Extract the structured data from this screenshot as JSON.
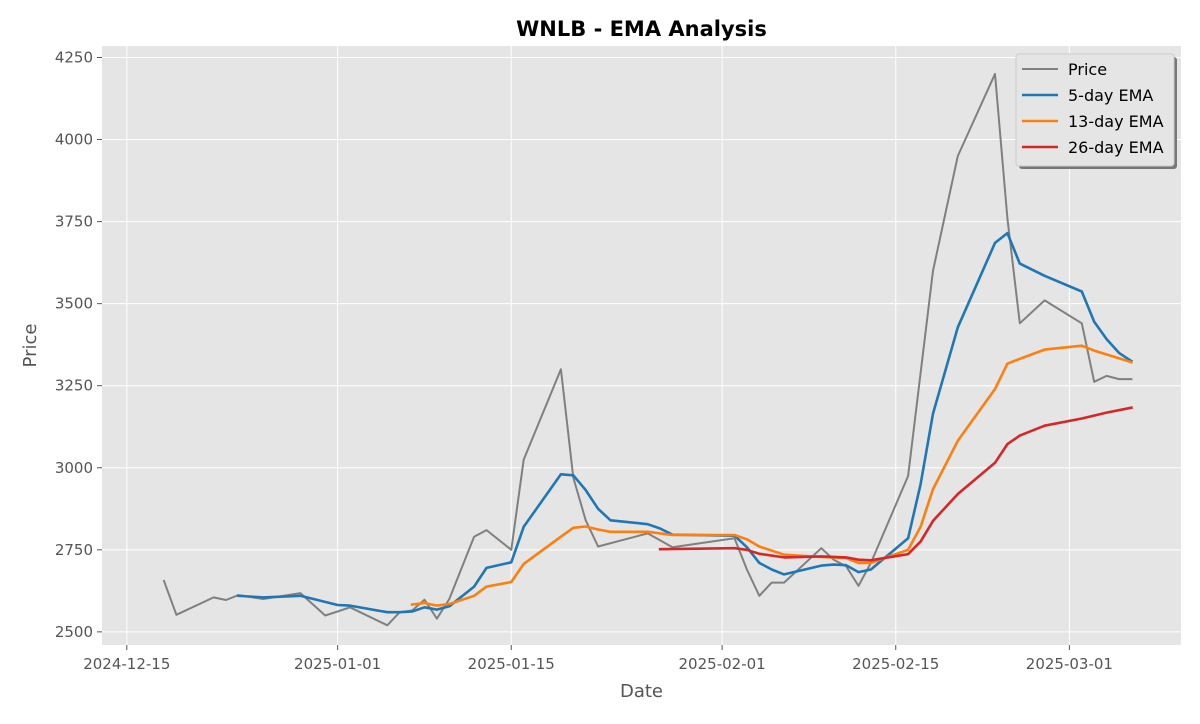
{
  "chart_data": {
    "type": "line",
    "title": "WNLB - EMA Analysis",
    "xlabel": "Date",
    "ylabel": "Price",
    "xlim": [
      "2024-12-13",
      "2025-03-10"
    ],
    "ylim": [
      2460,
      4285
    ],
    "x_ticks": [
      "2024-12-15",
      "2025-01-01",
      "2025-01-15",
      "2025-02-01",
      "2025-02-15",
      "2025-03-01"
    ],
    "y_ticks": [
      2500,
      2750,
      3000,
      3250,
      3500,
      3750,
      4000,
      4250
    ],
    "grid": true,
    "legend_position": "top-right",
    "series": [
      {
        "name": "Price",
        "color": "#808080",
        "points": [
          [
            "2024-12-18",
            2655
          ],
          [
            "2024-12-19",
            2552
          ],
          [
            "2024-12-22",
            2605
          ],
          [
            "2024-12-23",
            2597
          ],
          [
            "2024-12-24",
            2612
          ],
          [
            "2024-12-26",
            2600
          ],
          [
            "2024-12-29",
            2618
          ],
          [
            "2024-12-31",
            2550
          ],
          [
            "2025-01-01",
            2562
          ],
          [
            "2025-01-02",
            2575
          ],
          [
            "2025-01-05",
            2520
          ],
          [
            "2025-01-06",
            2560
          ],
          [
            "2025-01-07",
            2565
          ],
          [
            "2025-01-08",
            2598
          ],
          [
            "2025-01-09",
            2540
          ],
          [
            "2025-01-10",
            2600
          ],
          [
            "2025-01-12",
            2790
          ],
          [
            "2025-01-13",
            2810
          ],
          [
            "2025-01-15",
            2750
          ],
          [
            "2025-01-16",
            3025
          ],
          [
            "2025-01-19",
            3300
          ],
          [
            "2025-01-20",
            2970
          ],
          [
            "2025-01-21",
            2840
          ],
          [
            "2025-01-22",
            2760
          ],
          [
            "2025-01-26",
            2800
          ],
          [
            "2025-01-28",
            2758
          ],
          [
            "2025-02-02",
            2785
          ],
          [
            "2025-02-03",
            2690
          ],
          [
            "2025-02-04",
            2610
          ],
          [
            "2025-02-05",
            2650
          ],
          [
            "2025-02-06",
            2650
          ],
          [
            "2025-02-09",
            2755
          ],
          [
            "2025-02-10",
            2720
          ],
          [
            "2025-02-11",
            2700
          ],
          [
            "2025-02-12",
            2640
          ],
          [
            "2025-02-13",
            2710
          ],
          [
            "2025-02-16",
            2975
          ],
          [
            "2025-02-18",
            3600
          ],
          [
            "2025-02-20",
            3950
          ],
          [
            "2025-02-23",
            4200
          ],
          [
            "2025-02-24",
            3760
          ],
          [
            "2025-02-25",
            3440
          ],
          [
            "2025-02-27",
            3510
          ],
          [
            "2025-03-02",
            3440
          ],
          [
            "2025-03-03",
            3262
          ],
          [
            "2025-03-04",
            3280
          ],
          [
            "2025-03-05",
            3270
          ],
          [
            "2025-03-06",
            3270
          ]
        ]
      },
      {
        "name": "5-day EMA",
        "color": "#1f77b4",
        "points": [
          [
            "2024-12-24",
            2610
          ],
          [
            "2024-12-26",
            2605
          ],
          [
            "2024-12-29",
            2610
          ],
          [
            "2025-01-01",
            2582
          ],
          [
            "2025-01-02",
            2580
          ],
          [
            "2025-01-05",
            2560
          ],
          [
            "2025-01-06",
            2560
          ],
          [
            "2025-01-07",
            2562
          ],
          [
            "2025-01-08",
            2575
          ],
          [
            "2025-01-09",
            2568
          ],
          [
            "2025-01-10",
            2578
          ],
          [
            "2025-01-12",
            2638
          ],
          [
            "2025-01-13",
            2695
          ],
          [
            "2025-01-15",
            2712
          ],
          [
            "2025-01-16",
            2820
          ],
          [
            "2025-01-19",
            2980
          ],
          [
            "2025-01-20",
            2977
          ],
          [
            "2025-01-21",
            2932
          ],
          [
            "2025-01-22",
            2875
          ],
          [
            "2025-01-23",
            2840
          ],
          [
            "2025-01-26",
            2828
          ],
          [
            "2025-01-27",
            2815
          ],
          [
            "2025-01-28",
            2796
          ],
          [
            "2025-02-02",
            2793
          ],
          [
            "2025-02-03",
            2758
          ],
          [
            "2025-02-04",
            2710
          ],
          [
            "2025-02-05",
            2690
          ],
          [
            "2025-02-06",
            2675
          ],
          [
            "2025-02-09",
            2702
          ],
          [
            "2025-02-10",
            2705
          ],
          [
            "2025-02-11",
            2703
          ],
          [
            "2025-02-12",
            2682
          ],
          [
            "2025-02-13",
            2690
          ],
          [
            "2025-02-16",
            2785
          ],
          [
            "2025-02-17",
            2950
          ],
          [
            "2025-02-18",
            3165
          ],
          [
            "2025-02-20",
            3428
          ],
          [
            "2025-02-23",
            3685
          ],
          [
            "2025-02-24",
            3715
          ],
          [
            "2025-02-25",
            3622
          ],
          [
            "2025-02-27",
            3585
          ],
          [
            "2025-03-02",
            3537
          ],
          [
            "2025-03-03",
            3445
          ],
          [
            "2025-03-04",
            3392
          ],
          [
            "2025-03-05",
            3350
          ],
          [
            "2025-03-06",
            3325
          ]
        ]
      },
      {
        "name": "13-day EMA",
        "color": "#ff7f0e",
        "points": [
          [
            "2025-01-07",
            2583
          ],
          [
            "2025-01-08",
            2588
          ],
          [
            "2025-01-09",
            2580
          ],
          [
            "2025-01-10",
            2585
          ],
          [
            "2025-01-12",
            2610
          ],
          [
            "2025-01-13",
            2638
          ],
          [
            "2025-01-15",
            2652
          ],
          [
            "2025-01-16",
            2707
          ],
          [
            "2025-01-19",
            2790
          ],
          [
            "2025-01-20",
            2817
          ],
          [
            "2025-01-21",
            2821
          ],
          [
            "2025-01-22",
            2812
          ],
          [
            "2025-01-23",
            2805
          ],
          [
            "2025-01-26",
            2805
          ],
          [
            "2025-01-28",
            2795
          ],
          [
            "2025-02-02",
            2795
          ],
          [
            "2025-02-03",
            2782
          ],
          [
            "2025-02-04",
            2760
          ],
          [
            "2025-02-06",
            2735
          ],
          [
            "2025-02-09",
            2728
          ],
          [
            "2025-02-11",
            2725
          ],
          [
            "2025-02-12",
            2710
          ],
          [
            "2025-02-13",
            2710
          ],
          [
            "2025-02-16",
            2750
          ],
          [
            "2025-02-17",
            2820
          ],
          [
            "2025-02-18",
            2935
          ],
          [
            "2025-02-20",
            3082
          ],
          [
            "2025-02-23",
            3240
          ],
          [
            "2025-02-24",
            3317
          ],
          [
            "2025-02-25",
            3332
          ],
          [
            "2025-02-27",
            3360
          ],
          [
            "2025-03-02",
            3372
          ],
          [
            "2025-03-03",
            3357
          ],
          [
            "2025-03-06",
            3322
          ]
        ]
      },
      {
        "name": "26-day EMA",
        "color": "#d62728",
        "points": [
          [
            "2025-01-27",
            2752
          ],
          [
            "2025-02-02",
            2755
          ],
          [
            "2025-02-03",
            2750
          ],
          [
            "2025-02-04",
            2738
          ],
          [
            "2025-02-06",
            2727
          ],
          [
            "2025-02-09",
            2730
          ],
          [
            "2025-02-11",
            2727
          ],
          [
            "2025-02-12",
            2720
          ],
          [
            "2025-02-13",
            2718
          ],
          [
            "2025-02-16",
            2737
          ],
          [
            "2025-02-17",
            2775
          ],
          [
            "2025-02-18",
            2838
          ],
          [
            "2025-02-20",
            2920
          ],
          [
            "2025-02-23",
            3015
          ],
          [
            "2025-02-24",
            3072
          ],
          [
            "2025-02-25",
            3098
          ],
          [
            "2025-02-27",
            3128
          ],
          [
            "2025-03-02",
            3150
          ],
          [
            "2025-03-04",
            3168
          ],
          [
            "2025-03-06",
            3183
          ]
        ]
      }
    ]
  }
}
